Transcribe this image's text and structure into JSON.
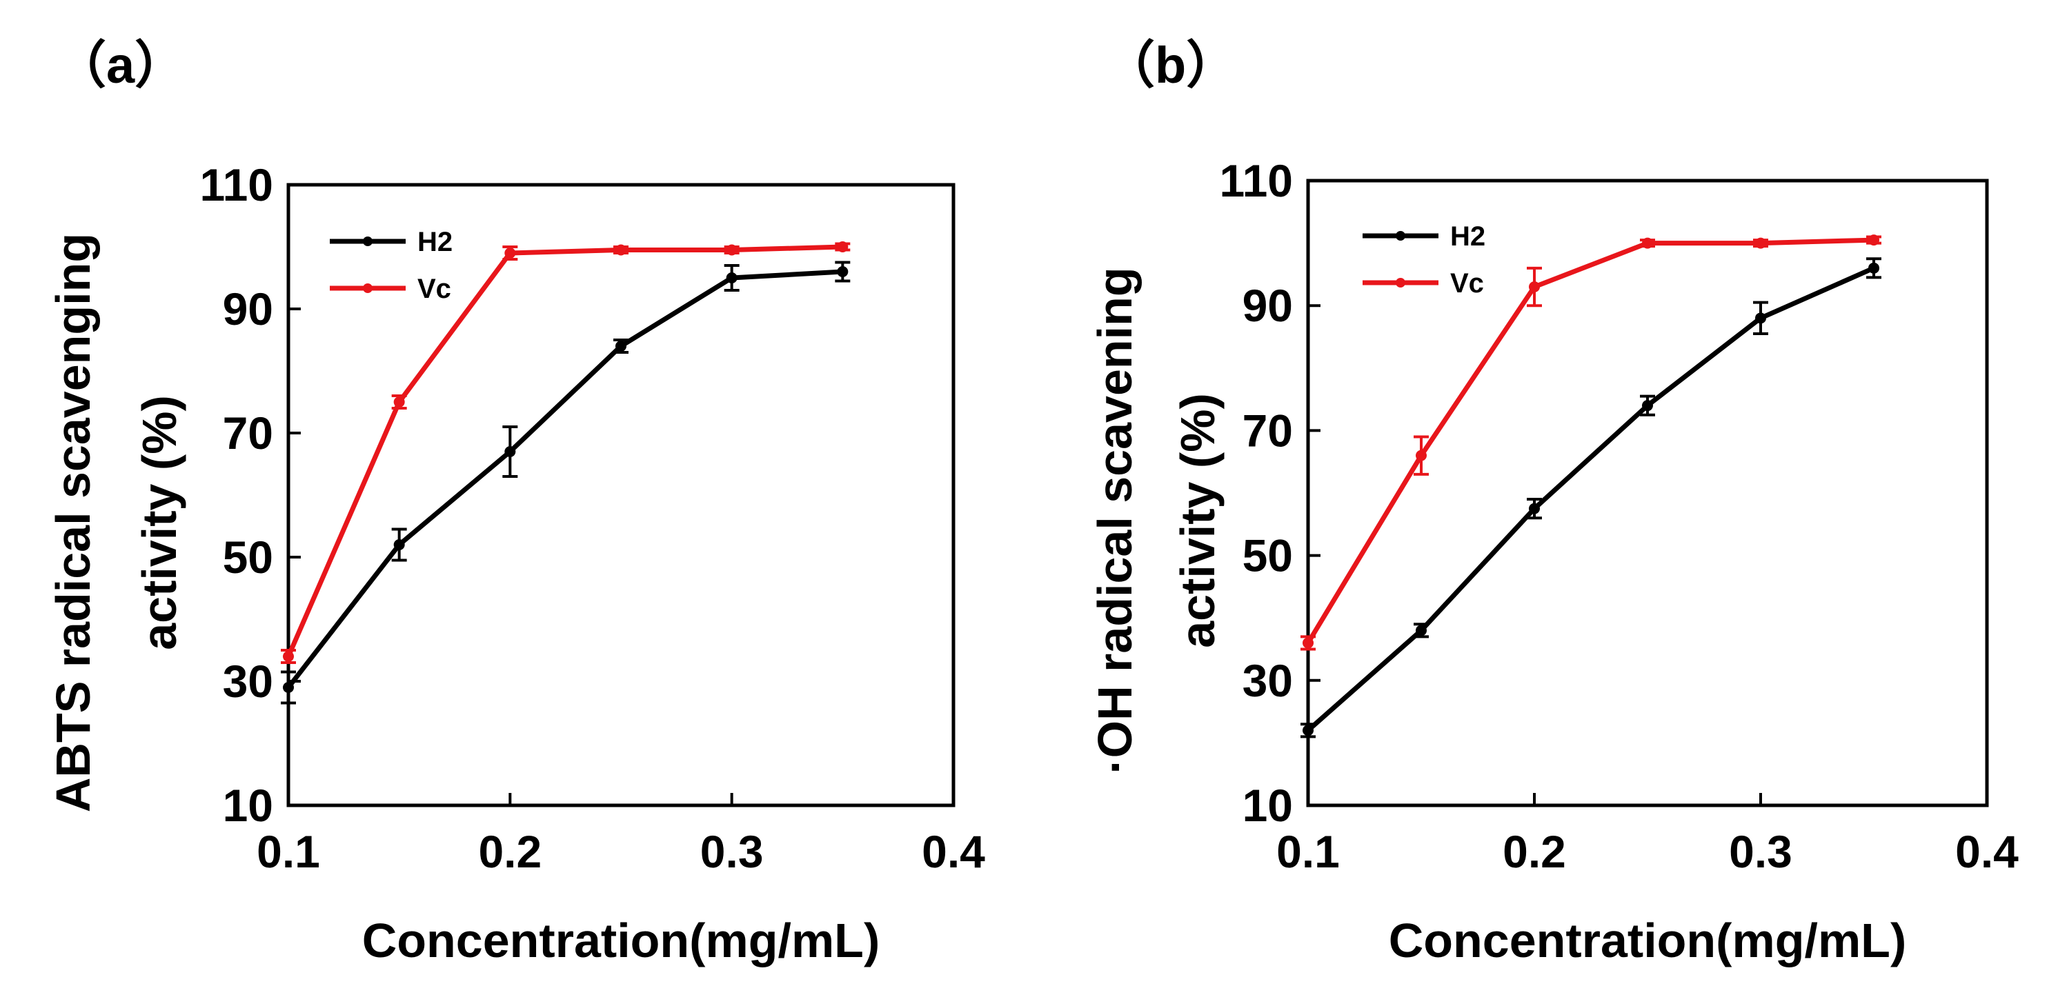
{
  "chart_data": [
    {
      "type": "line",
      "panel_label": "（a）",
      "xlabel": "Concentration(mg/mL)",
      "ylabel_lines": [
        "ABTS radical scavenging",
        "activity (%)"
      ],
      "xlim": [
        0.1,
        0.4
      ],
      "ylim": [
        10,
        110
      ],
      "x_ticks": [
        "0.1",
        "0.2",
        "0.3",
        "0.4"
      ],
      "y_ticks": [
        "10",
        "30",
        "50",
        "70",
        "90",
        "110"
      ],
      "grid": false,
      "legend_position": "top-left",
      "series": [
        {
          "name": "H2",
          "color": "#000000",
          "x": [
            0.1,
            0.15,
            0.2,
            0.25,
            0.3,
            0.35
          ],
          "y": [
            29,
            52,
            67,
            84,
            95,
            96
          ],
          "err": [
            2.5,
            2.5,
            4,
            1,
            2,
            1.5
          ]
        },
        {
          "name": "Vc",
          "color": "#e8161b",
          "x": [
            0.1,
            0.15,
            0.2,
            0.25,
            0.3,
            0.35
          ],
          "y": [
            34,
            75,
            99,
            99.5,
            99.5,
            100
          ],
          "err": [
            1,
            1,
            1,
            0.5,
            0.5,
            0.5
          ]
        }
      ]
    },
    {
      "type": "line",
      "panel_label": "（b）",
      "xlabel": "Concentration(mg/mL)",
      "ylabel_lines": [
        "·OH radical scavening",
        "activity (%)"
      ],
      "xlim": [
        0.1,
        0.4
      ],
      "ylim": [
        10,
        110
      ],
      "x_ticks": [
        "0.1",
        "0.2",
        "0.3",
        "0.4"
      ],
      "y_ticks": [
        "10",
        "30",
        "50",
        "70",
        "90",
        "110"
      ],
      "grid": false,
      "legend_position": "top-left",
      "series": [
        {
          "name": "H2",
          "color": "#000000",
          "x": [
            0.1,
            0.15,
            0.2,
            0.25,
            0.3,
            0.35
          ],
          "y": [
            22,
            38,
            57.5,
            74,
            88,
            96
          ],
          "err": [
            1,
            1,
            1.5,
            1.5,
            2.5,
            1.5
          ]
        },
        {
          "name": "Vc",
          "color": "#e8161b",
          "x": [
            0.1,
            0.15,
            0.2,
            0.25,
            0.3,
            0.35
          ],
          "y": [
            36,
            66,
            93,
            100,
            100,
            100.5
          ],
          "err": [
            1,
            3,
            3,
            0.5,
            0.5,
            0.5
          ]
        }
      ]
    }
  ]
}
